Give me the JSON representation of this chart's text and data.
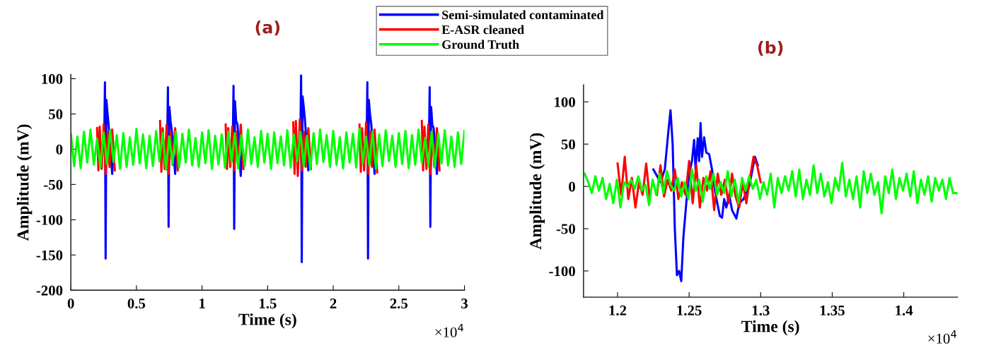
{
  "chart_data": [
    {
      "type": "line",
      "title": "(a)",
      "xlabel": "Time (s)",
      "ylabel": "Amplitude (mV)",
      "annotations": [
        "×10$^{4}$"
      ],
      "legend": "top",
      "xlim": [
        0,
        3
      ],
      "ylim": [
        -200,
        106
      ],
      "xticks": [
        0,
        0.5,
        1,
        1.5,
        2,
        2.5,
        3
      ],
      "yticks": [
        -200,
        -150,
        -100,
        -50,
        0,
        50,
        100
      ],
      "x": [
        0,
        0.025,
        0.05,
        0.075,
        0.1,
        0.125,
        0.15,
        0.175,
        0.2,
        0.225,
        0.25,
        0.275,
        0.3,
        0.325,
        0.35,
        0.375,
        0.4,
        0.425,
        0.45,
        0.475,
        0.5,
        0.525,
        0.55,
        0.575,
        0.6,
        0.625,
        0.65,
        0.675,
        0.7,
        0.725,
        0.75,
        0.775,
        0.8,
        0.825,
        0.85,
        0.875,
        0.9,
        0.925,
        0.95,
        0.975,
        1,
        1.025,
        1.05,
        1.075,
        1.1,
        1.125,
        1.15,
        1.175,
        1.2,
        1.225,
        1.25,
        1.275,
        1.3,
        1.325,
        1.35,
        1.375,
        1.4,
        1.425,
        1.45,
        1.475,
        1.5,
        1.525,
        1.55,
        1.575,
        1.6,
        1.625,
        1.65,
        1.675,
        1.7,
        1.725,
        1.75,
        1.775,
        1.8,
        1.825,
        1.85,
        1.875,
        1.9,
        1.925,
        1.95,
        1.975,
        2,
        2.025,
        2.05,
        2.075,
        2.1,
        2.125,
        2.15,
        2.175,
        2.2,
        2.225,
        2.25,
        2.275,
        2.3,
        2.325,
        2.35,
        2.375,
        2.4,
        2.425,
        2.45,
        2.475,
        2.5,
        2.525,
        2.55,
        2.575,
        2.6,
        2.625,
        2.65,
        2.675,
        2.7,
        2.725,
        2.75,
        2.775,
        2.8,
        2.825,
        2.85,
        2.875,
        2.9,
        2.925,
        2.95,
        2.975,
        3
      ],
      "series": [
        {
          "name": "Semi-simulated contaminated",
          "color": "#0000ff",
          "x": [
            0.235,
            0.255,
            0.26,
            0.265,
            0.271,
            0.28,
            0.29,
            0.315,
            0.325,
            0.335,
            0.715,
            0.735,
            0.74,
            0.745,
            0.751,
            0.76,
            0.77,
            0.795,
            0.805,
            0.815,
            1.215,
            1.235,
            1.24,
            1.245,
            1.251,
            1.26,
            1.27,
            1.295,
            1.305,
            1.315,
            1.73,
            1.75,
            1.755,
            1.76,
            1.766,
            1.775,
            1.785,
            1.81,
            1.82,
            1.83,
            2.235,
            2.255,
            2.26,
            2.265,
            2.271,
            2.28,
            2.29,
            2.315,
            2.325,
            2.335,
            2.71,
            2.73,
            2.735,
            2.74,
            2.746,
            2.755,
            2.765,
            2.79,
            2.8
          ],
          "values": [
            0,
            20,
            95,
            -155,
            70,
            50,
            30,
            -35,
            0,
            null,
            0,
            20,
            88,
            -110,
            60,
            40,
            25,
            -35,
            0,
            null,
            0,
            20,
            90,
            -113,
            68,
            40,
            35,
            -38,
            0,
            null,
            0,
            25,
            105,
            -160,
            75,
            60,
            40,
            -30,
            0,
            null,
            0,
            20,
            95,
            -155,
            70,
            50,
            35,
            -35,
            0,
            null,
            0,
            20,
            88,
            -110,
            60,
            35,
            30,
            -35,
            0
          ]
        },
        {
          "name": "E-ASR cleaned",
          "color": "#ff0000",
          "x": [
            0.2,
            0.21,
            0.22,
            0.235,
            0.25,
            0.265,
            0.28,
            0.295,
            0.315,
            0.335,
            0.345,
            0.68,
            0.69,
            0.7,
            0.715,
            0.73,
            0.745,
            0.76,
            0.775,
            0.795,
            0.815,
            0.825,
            1.18,
            1.19,
            1.2,
            1.215,
            1.23,
            1.245,
            1.26,
            1.275,
            1.295,
            1.315,
            1.325,
            1.695,
            1.705,
            1.715,
            1.73,
            1.745,
            1.76,
            1.775,
            1.79,
            1.81,
            1.83,
            1.84,
            2.2,
            2.21,
            2.22,
            2.235,
            2.25,
            2.265,
            2.28,
            2.295,
            2.315,
            2.335,
            2.345,
            2.675,
            2.685,
            2.695,
            2.71,
            2.725,
            2.74,
            2.755,
            2.77,
            2.79,
            2.81
          ],
          "values": [
            30,
            -30,
            32,
            -28,
            35,
            -35,
            25,
            -25,
            28,
            -30,
            null,
            40,
            -32,
            30,
            -28,
            35,
            -35,
            25,
            -22,
            30,
            -30,
            null,
            35,
            -28,
            30,
            -25,
            32,
            -30,
            25,
            -25,
            35,
            -28,
            null,
            38,
            -35,
            40,
            -38,
            42,
            -30,
            25,
            -25,
            30,
            -28,
            null,
            35,
            -32,
            30,
            -30,
            38,
            -35,
            25,
            -25,
            28,
            -33,
            null,
            40,
            -30,
            32,
            -28,
            35,
            -35,
            25,
            -25,
            30,
            -30
          ]
        },
        {
          "name": "Ground Truth",
          "color": "#00ff00",
          "values": [
            22,
            -24,
            18,
            -27,
            25,
            -19,
            28,
            -22,
            15,
            -26,
            24,
            -21,
            27,
            -18,
            20,
            -28,
            23,
            -25,
            17,
            -22,
            29,
            -20,
            21,
            -27,
            19,
            -24,
            26,
            -17,
            23,
            -29,
            18,
            -21,
            25,
            -26,
            22,
            -19,
            28,
            -23,
            16,
            -25,
            24,
            -20,
            27,
            -28,
            19,
            -22,
            21,
            -26,
            25,
            -18,
            23,
            -27,
            20,
            -24,
            28,
            -21,
            17,
            -25,
            26,
            -19,
            22,
            -28,
            24,
            -20,
            18,
            -23,
            27,
            -26,
            21,
            -17,
            25,
            -24,
            19,
            -29,
            23,
            -21,
            28,
            -18,
            20,
            -25,
            26,
            -22,
            17,
            -27,
            24,
            -19,
            22,
            -26,
            29,
            -20,
            18,
            -23,
            25,
            -28,
            21,
            -24,
            27,
            -17,
            19,
            -25,
            23,
            -21,
            26,
            -27,
            20,
            -22,
            28,
            -19,
            16,
            -24,
            25,
            -26,
            22,
            -20,
            27,
            -23,
            18,
            -25,
            24,
            -21,
            26
          ]
        }
      ]
    },
    {
      "type": "line",
      "title": "(b)",
      "xlabel": "Time (s)",
      "ylabel": "Amplitude (mV)",
      "annotations": [
        "×10$^{4}$"
      ],
      "xlim": [
        1.1762,
        1.4375
      ],
      "ylim": [
        -131,
        120
      ],
      "xticks": [
        1.2,
        1.25,
        1.3,
        1.35,
        1.4
      ],
      "yticks": [
        -100,
        -50,
        0,
        50,
        100
      ],
      "series": [
        {
          "color": "#0000ff",
          "x": [
            1.225,
            1.23,
            1.233,
            1.2355,
            1.237,
            1.2385,
            1.24,
            1.2415,
            1.243,
            1.2445,
            1.246,
            1.248,
            1.25,
            1.252,
            1.2535,
            1.2545,
            1.256,
            1.257,
            1.258,
            1.259,
            1.2605,
            1.262,
            1.264,
            1.266,
            1.2685,
            1.2715,
            1.273,
            1.2745,
            1.276,
            1.278,
            1.28,
            1.283,
            1.285,
            1.288,
            1.292,
            1.296,
            1.298
          ],
          "values": [
            20,
            5,
            20,
            65,
            90,
            50,
            -50,
            -105,
            -100,
            -112,
            -60,
            -20,
            15,
            30,
            55,
            20,
            57,
            30,
            75,
            35,
            58,
            40,
            38,
            20,
            -10,
            -35,
            -37,
            -15,
            -25,
            -10,
            -28,
            -38,
            -20,
            -15,
            0,
            35,
            25
          ]
        },
        {
          "color": "#ff0000",
          "x": [
            1.2,
            1.2025,
            1.205,
            1.2075,
            1.21,
            1.2125,
            1.215,
            1.2175,
            1.22,
            1.2225,
            1.225,
            1.2275,
            1.23,
            1.2325,
            1.235,
            1.2375,
            1.24,
            1.2425,
            1.245,
            1.2475,
            1.25,
            1.2525,
            1.255,
            1.2575,
            1.26,
            1.2625,
            1.265,
            1.2675,
            1.27,
            1.2725,
            1.275,
            1.2775,
            1.28,
            1.2825,
            1.285,
            1.2875,
            1.29,
            1.2925,
            1.295,
            1.2975,
            1.3
          ],
          "values": [
            27,
            -10,
            35,
            -15,
            10,
            -25,
            5,
            -10,
            27,
            -15,
            null,
            -10,
            25,
            -12,
            8,
            -5,
            20,
            -15,
            5,
            -10,
            30,
            -20,
            25,
            -25,
            10,
            -5,
            18,
            -28,
            15,
            -10,
            8,
            -20,
            15,
            -12,
            -25,
            5,
            -20,
            10,
            35,
            25,
            5
          ]
        },
        {
          "color": "#00ff00",
          "x": [
            1.177,
            1.1795,
            1.182,
            1.1845,
            1.187,
            1.1895,
            1.192,
            1.1945,
            1.197,
            1.1995,
            1.202,
            1.2045,
            1.207,
            1.2095,
            1.212,
            1.2145,
            1.217,
            1.2195,
            1.222,
            1.2245,
            1.227,
            1.2295,
            1.232,
            1.2345,
            1.237,
            1.2395,
            1.242,
            1.2445,
            1.247,
            1.2495,
            1.252,
            1.2545,
            1.257,
            1.2595,
            1.262,
            1.2645,
            1.267,
            1.2695,
            1.272,
            1.2745,
            1.277,
            1.2795,
            1.282,
            1.2845,
            1.287,
            1.2895,
            1.292,
            1.2945,
            1.297,
            1.2995,
            1.302,
            1.3045,
            1.307,
            1.3095,
            1.312,
            1.3145,
            1.317,
            1.3195,
            1.322,
            1.3245,
            1.327,
            1.3295,
            1.332,
            1.3345,
            1.337,
            1.3395,
            1.342,
            1.3445,
            1.347,
            1.3495,
            1.352,
            1.3545,
            1.357,
            1.3595,
            1.362,
            1.3645,
            1.367,
            1.3695,
            1.372,
            1.3745,
            1.377,
            1.3795,
            1.382,
            1.3845,
            1.387,
            1.3895,
            1.392,
            1.3945,
            1.397,
            1.3995,
            1.402,
            1.4045,
            1.407,
            1.4095,
            1.412,
            1.4145,
            1.417,
            1.4195,
            1.422,
            1.4245,
            1.427,
            1.4295,
            1.432,
            1.4345,
            1.437
          ],
          "values": [
            15,
            5,
            -8,
            12,
            -5,
            10,
            -15,
            3,
            -20,
            8,
            -25,
            5,
            0,
            8,
            -3,
            12,
            -5,
            2,
            -22,
            8,
            -10,
            15,
            -8,
            18,
            2,
            -5,
            10,
            -12,
            5,
            -15,
            20,
            -5,
            8,
            -18,
            12,
            -3,
            15,
            -10,
            5,
            -8,
            18,
            -12,
            8,
            -20,
            10,
            -5,
            12,
            -3,
            8,
            -15,
            5,
            -10,
            15,
            -25,
            10,
            -8,
            12,
            -5,
            18,
            -12,
            20,
            -15,
            8,
            -10,
            25,
            -8,
            15,
            -12,
            5,
            -20,
            10,
            -5,
            28,
            -12,
            8,
            -15,
            12,
            -25,
            18,
            -8,
            15,
            -10,
            5,
            -32,
            12,
            -8,
            20,
            -15,
            10,
            -5,
            15,
            -12,
            18,
            -20,
            8,
            -10,
            12,
            -18,
            10,
            -5,
            8,
            -15,
            10,
            -8,
            -8
          ]
        }
      ]
    }
  ]
}
